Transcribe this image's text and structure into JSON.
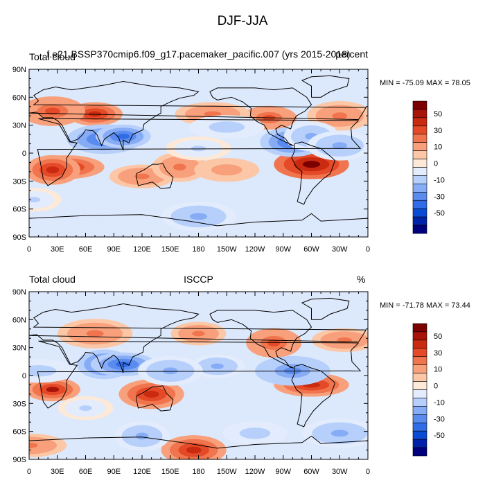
{
  "page_title": "DJF-JJA",
  "colors": {
    "palette": [
      "#00007f",
      "#0022a8",
      "#0a4bd6",
      "#2f6ce6",
      "#5a8cf0",
      "#86acf6",
      "#b6cffb",
      "#e2ecfd",
      "#fde9d8",
      "#fcc7a6",
      "#f8a07b",
      "#f0754f",
      "#e44a27",
      "#c92a10",
      "#a8130a",
      "#7d0000"
    ],
    "ocean_base": "#dce8fb",
    "coastline": "#000000"
  },
  "colorbar": {
    "levels": [
      "-70",
      "-60",
      "-50",
      "-40",
      "-30",
      "-20",
      "-10",
      "-5",
      "0",
      "10",
      "20",
      "30",
      "40",
      "50",
      "60",
      "70"
    ],
    "labels": [
      "50",
      "30",
      "10",
      "0",
      "-10",
      "-30",
      "-50"
    ]
  },
  "chart_data": [
    {
      "type": "heatmap",
      "left_title": "Total cloud",
      "center_title": "f.e21.BSSP370cmip6.f09_g17.pacemaker_pacific.007 (yrs 2015-2018)",
      "right_title": "percent",
      "stats": "MIN = -75.09 MAX =  78.05",
      "min": -75.09,
      "max": 78.05,
      "x_ticks": [
        "0",
        "30E",
        "60E",
        "90E",
        "120E",
        "150E",
        "180",
        "150W",
        "120W",
        "90W",
        "60W",
        "30W",
        "0"
      ],
      "y_ticks": [
        "90N",
        "60N",
        "30N",
        "0",
        "30S",
        "60S",
        "90S"
      ],
      "xlim": [
        0,
        360
      ],
      "ylim": [
        -90,
        90
      ],
      "features": [
        {
          "lon": 70,
          "lat": 42,
          "value": 40
        },
        {
          "lon": 25,
          "lat": 45,
          "value": 30
        },
        {
          "lon": 40,
          "lat": -15,
          "value": 45
        },
        {
          "lon": 25,
          "lat": -18,
          "value": 40
        },
        {
          "lon": 120,
          "lat": -25,
          "value": 20
        },
        {
          "lon": 300,
          "lat": -12,
          "value": 60
        },
        {
          "lon": 255,
          "lat": 38,
          "value": 30
        },
        {
          "lon": 330,
          "lat": 40,
          "value": 22
        },
        {
          "lon": 195,
          "lat": 42,
          "value": 22
        },
        {
          "lon": 160,
          "lat": -15,
          "value": 20
        },
        {
          "lon": 210,
          "lat": -18,
          "value": 15
        },
        {
          "lon": 80,
          "lat": 15,
          "value": -45
        },
        {
          "lon": 100,
          "lat": 18,
          "value": -40
        },
        {
          "lon": 280,
          "lat": 12,
          "value": -40
        },
        {
          "lon": 210,
          "lat": 28,
          "value": -15
        },
        {
          "lon": 300,
          "lat": 18,
          "value": -20
        },
        {
          "lon": 180,
          "lat": 5,
          "value": -10
        },
        {
          "lon": 180,
          "lat": -68,
          "value": -25
        },
        {
          "lon": 5,
          "lat": -50,
          "value": -10
        },
        {
          "lon": 330,
          "lat": 8,
          "value": -20
        }
      ]
    },
    {
      "type": "heatmap",
      "left_title": "Total cloud",
      "center_title": "ISCCP",
      "right_title": "%",
      "stats": "MIN = -71.78 MAX =  73.44",
      "min": -71.78,
      "max": 73.44,
      "x_ticks": [
        "0",
        "30E",
        "60E",
        "90E",
        "120E",
        "150E",
        "180",
        "150W",
        "120W",
        "90W",
        "60W",
        "30W",
        "0"
      ],
      "y_ticks": [
        "90N",
        "60N",
        "30N",
        "0",
        "30S",
        "60S",
        "90S"
      ],
      "xlim": [
        0,
        360
      ],
      "ylim": [
        -90,
        90
      ],
      "features": [
        {
          "lon": 25,
          "lat": -15,
          "value": 50
        },
        {
          "lon": 130,
          "lat": -20,
          "value": 40
        },
        {
          "lon": 300,
          "lat": -10,
          "value": 40
        },
        {
          "lon": 260,
          "lat": 35,
          "value": 30
        },
        {
          "lon": 335,
          "lat": 38,
          "value": 25
        },
        {
          "lon": 70,
          "lat": 45,
          "value": 20
        },
        {
          "lon": 180,
          "lat": 45,
          "value": 20
        },
        {
          "lon": 175,
          "lat": -80,
          "value": 45
        },
        {
          "lon": 0,
          "lat": -75,
          "value": 20
        },
        {
          "lon": 80,
          "lat": 12,
          "value": -50
        },
        {
          "lon": 100,
          "lat": 12,
          "value": -45
        },
        {
          "lon": 280,
          "lat": 5,
          "value": -35
        },
        {
          "lon": 200,
          "lat": 10,
          "value": -20
        },
        {
          "lon": 150,
          "lat": 5,
          "value": -25
        },
        {
          "lon": 10,
          "lat": 5,
          "value": -15
        },
        {
          "lon": 120,
          "lat": -65,
          "value": -20
        },
        {
          "lon": 240,
          "lat": -62,
          "value": -15
        },
        {
          "lon": 330,
          "lat": -62,
          "value": -20
        },
        {
          "lon": 60,
          "lat": -35,
          "value": -10
        }
      ]
    }
  ]
}
